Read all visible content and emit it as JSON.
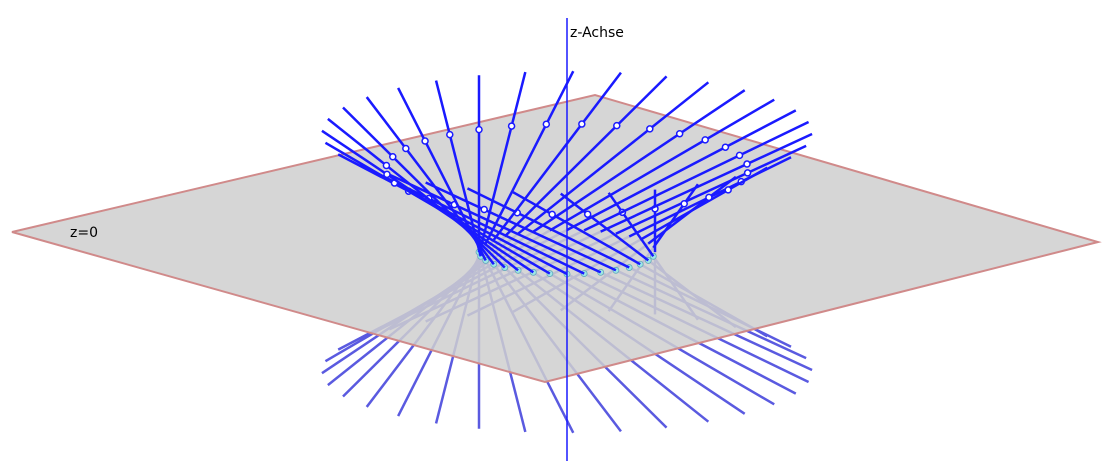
{
  "labels": {
    "axis": "z-Achse",
    "plane": "z=0"
  }
}
